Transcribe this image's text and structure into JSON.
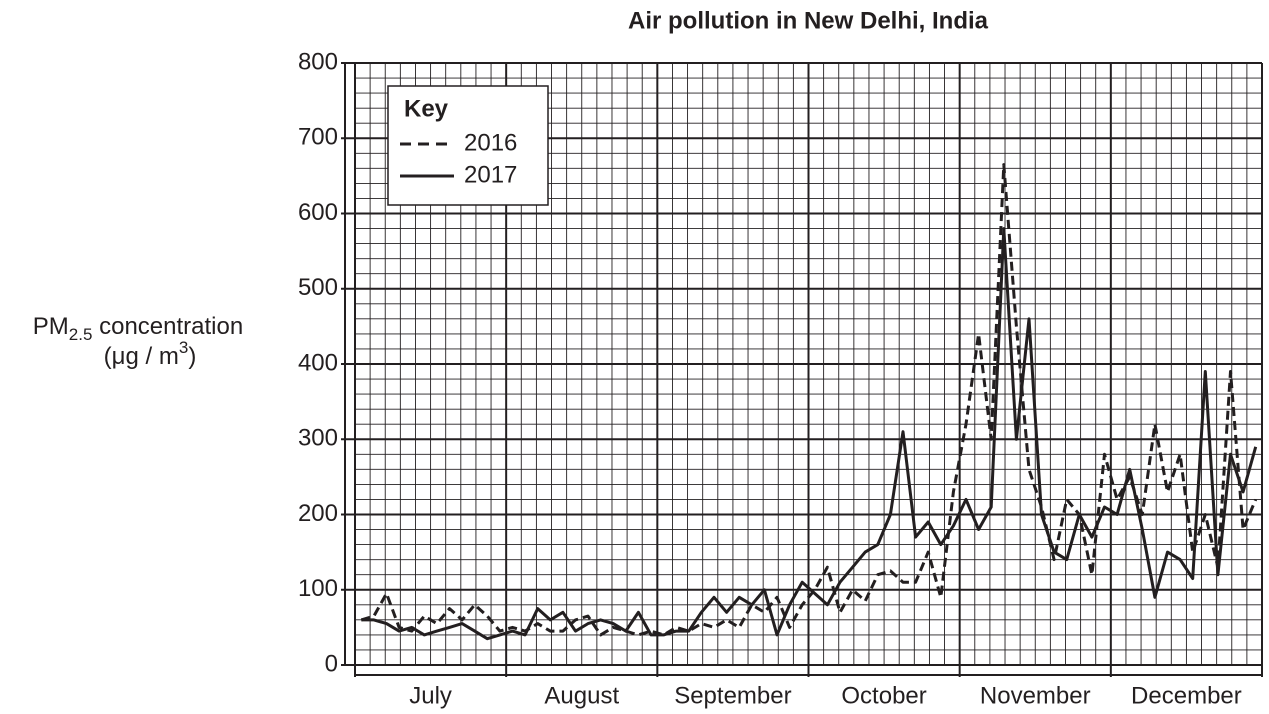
{
  "chart_data": {
    "type": "line",
    "title": "Air pollution in New Delhi, India",
    "y_label": {
      "main": "PM",
      "sub": "2.5",
      "rest": " concentration",
      "unit_open": "(μg / m",
      "unit_sup": "3",
      "unit_close": ")"
    },
    "legend_title": "Key",
    "legend": "top-left",
    "grid": true,
    "categories": [
      null,
      null,
      null,
      null,
      null,
      null,
      "July",
      null,
      null,
      null,
      null,
      null,
      null,
      null,
      null,
      null,
      null,
      null,
      "August",
      null,
      null,
      null,
      null,
      null,
      null,
      null,
      null,
      null,
      null,
      null,
      "September",
      null,
      null,
      null,
      null,
      null,
      null,
      null,
      null,
      null,
      null,
      null,
      "October",
      null,
      null,
      null,
      null,
      null,
      null,
      null,
      null,
      null,
      null,
      null,
      "November",
      null,
      null,
      null,
      null,
      null,
      null,
      null,
      null,
      null,
      null,
      null,
      "December",
      null,
      null,
      null,
      null,
      null
    ],
    "ylim": [
      0,
      800
    ],
    "yticks": [
      0,
      100,
      200,
      300,
      400,
      500,
      600,
      700,
      800
    ],
    "series": [
      {
        "name": "2016",
        "color": "#231f20",
        "dash": true,
        "values": [
          60,
          65,
          95,
          50,
          45,
          65,
          55,
          75,
          60,
          80,
          65,
          45,
          50,
          45,
          55,
          45,
          45,
          60,
          65,
          40,
          50,
          45,
          40,
          45,
          40,
          50,
          45,
          55,
          50,
          60,
          50,
          80,
          70,
          90,
          50,
          80,
          100,
          130,
          70,
          100,
          85,
          120,
          125,
          110,
          110,
          150,
          90,
          230,
          320,
          440,
          300,
          665,
          450,
          260,
          210,
          140,
          220,
          200,
          120,
          280,
          220,
          250,
          200,
          320,
          230,
          280,
          150,
          200,
          130,
          390,
          180,
          220
        ]
      },
      {
        "name": "2017",
        "color": "#231f20",
        "dash": false,
        "values": [
          60,
          60,
          55,
          45,
          50,
          40,
          45,
          50,
          55,
          45,
          35,
          40,
          45,
          40,
          75,
          60,
          70,
          45,
          55,
          60,
          55,
          45,
          70,
          40,
          40,
          45,
          45,
          70,
          90,
          70,
          90,
          80,
          100,
          40,
          80,
          110,
          95,
          80,
          110,
          130,
          150,
          160,
          200,
          310,
          170,
          190,
          160,
          185,
          220,
          180,
          210,
          580,
          300,
          460,
          200,
          150,
          140,
          200,
          170,
          210,
          200,
          260,
          180,
          90,
          150,
          140,
          115,
          390,
          120,
          280,
          230,
          290
        ]
      }
    ]
  }
}
